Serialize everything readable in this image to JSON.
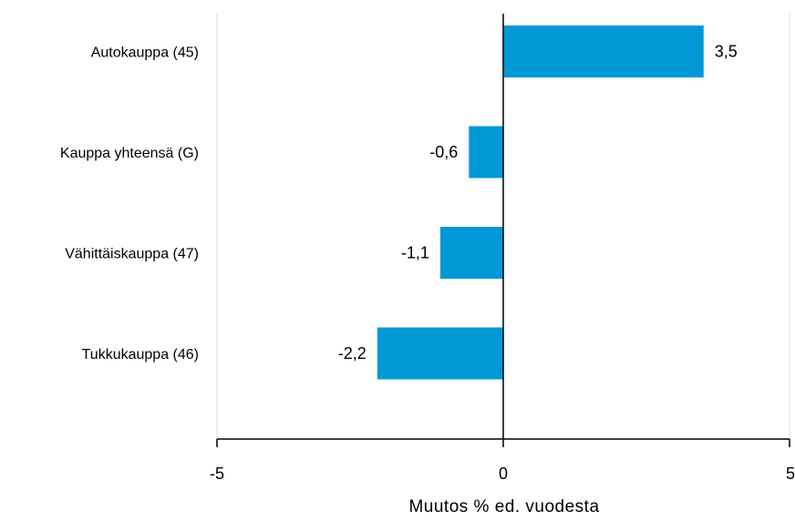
{
  "chart_data": {
    "type": "bar",
    "orientation": "horizontal",
    "categories": [
      "Autokauppa (45)",
      "Kauppa yhteensä (G)",
      "Vähittäiskauppa (47)",
      "Tukkukauppa (46)"
    ],
    "values": [
      3.5,
      -0.6,
      -1.1,
      -2.2
    ],
    "value_labels": [
      "3,5",
      "-0,6",
      "-1,1",
      "-2,2"
    ],
    "xlabel": "Muutos % ed. vuodesta",
    "xlim": [
      -5,
      5
    ],
    "xticks": [
      -5,
      0,
      5
    ],
    "xtick_labels": [
      "-5",
      "0",
      "5"
    ],
    "grid": true,
    "colors": {
      "bar": "#0099d6",
      "grid": "#d9d9d9",
      "axis": "#000000"
    }
  }
}
